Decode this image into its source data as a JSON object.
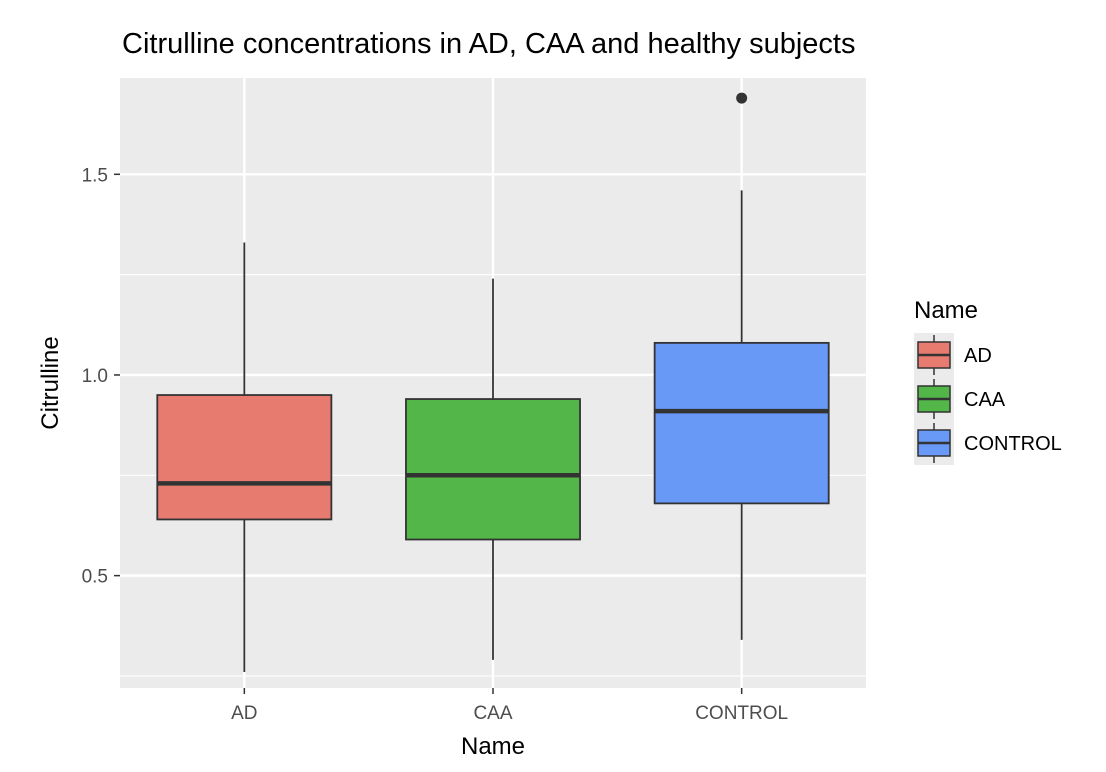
{
  "chart_data": {
    "type": "box",
    "title": "Citrulline concentrations in AD, CAA and healthy subjects",
    "xlabel": "Name",
    "ylabel": "Citrulline",
    "categories": [
      "AD",
      "CAA",
      "CONTROL"
    ],
    "ylim": [
      0.22,
      1.74
    ],
    "yticks": [
      0.5,
      1.0,
      1.5
    ],
    "ytick_labels": [
      "0.5",
      "1.0",
      "1.5"
    ],
    "grid": true,
    "legend": {
      "title": "Name",
      "position": "right"
    },
    "series": [
      {
        "name": "AD",
        "color": "#e87b70",
        "whisker_low": 0.26,
        "q1": 0.64,
        "median": 0.73,
        "q3": 0.95,
        "whisker_high": 1.33,
        "outliers": []
      },
      {
        "name": "CAA",
        "color": "#53b649",
        "whisker_low": 0.29,
        "q1": 0.59,
        "median": 0.75,
        "q3": 0.94,
        "whisker_high": 1.24,
        "outliers": []
      },
      {
        "name": "CONTROL",
        "color": "#6899f7",
        "whisker_low": 0.34,
        "q1": 0.68,
        "median": 0.91,
        "q3": 1.08,
        "whisker_high": 1.46,
        "outliers": [
          1.69
        ]
      }
    ]
  }
}
